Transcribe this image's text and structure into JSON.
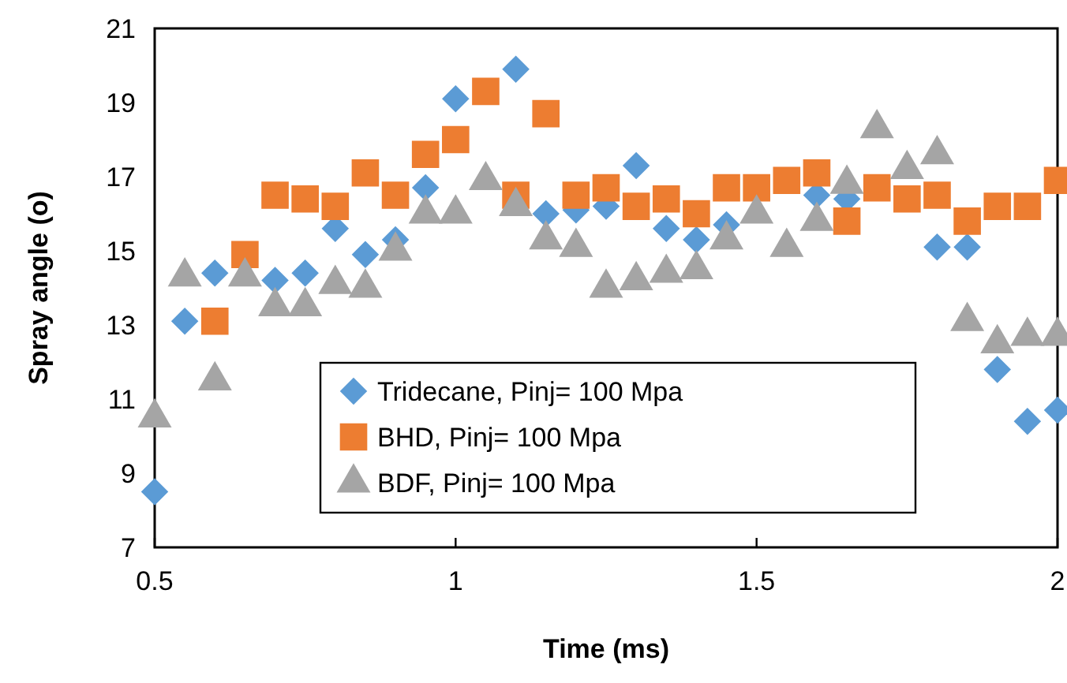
{
  "chart_data": {
    "type": "scatter",
    "xlabel": "Time (ms)",
    "ylabel": "Spray angle (o)",
    "x": [
      0.5,
      0.55,
      0.6,
      0.65,
      0.7,
      0.75,
      0.8,
      0.85,
      0.9,
      0.95,
      1.0,
      1.05,
      1.1,
      1.15,
      1.2,
      1.25,
      1.3,
      1.35,
      1.4,
      1.45,
      1.5,
      1.55,
      1.6,
      1.65,
      1.7,
      1.75,
      1.8,
      1.85,
      1.9,
      1.95,
      2.0
    ],
    "series": [
      {
        "name": "Tridecane, Pinj= 100 Mpa",
        "color": "#5b9bd5",
        "marker": "diamond",
        "values": [
          8.5,
          13.1,
          14.4,
          null,
          14.2,
          14.4,
          15.6,
          14.9,
          15.3,
          16.7,
          19.1,
          null,
          19.9,
          16.0,
          16.1,
          16.2,
          17.3,
          15.6,
          15.3,
          15.7,
          null,
          null,
          16.5,
          16.4,
          null,
          null,
          15.1,
          15.1,
          11.8,
          10.4,
          10.7
        ]
      },
      {
        "name": "BHD, Pinj= 100 Mpa",
        "color": "#ed7d31",
        "marker": "square",
        "values": [
          null,
          null,
          13.1,
          14.9,
          16.5,
          16.4,
          16.2,
          17.1,
          16.5,
          17.6,
          18.0,
          19.3,
          16.5,
          18.7,
          16.5,
          16.7,
          16.2,
          16.4,
          16.0,
          16.7,
          16.7,
          16.9,
          17.1,
          15.8,
          16.7,
          16.4,
          16.5,
          15.8,
          16.2,
          16.2,
          16.9
        ]
      },
      {
        "name": "BDF, Pinj= 100 Mpa",
        "color": "#a5a5a5",
        "marker": "triangle",
        "values": [
          10.5,
          14.3,
          11.5,
          14.3,
          13.5,
          13.5,
          14.1,
          14.0,
          15.0,
          16.0,
          16.0,
          16.9,
          16.2,
          15.3,
          15.1,
          14.0,
          14.2,
          14.4,
          14.5,
          15.3,
          16.0,
          15.1,
          15.8,
          16.8,
          18.3,
          17.2,
          17.6,
          13.1,
          12.5,
          12.7,
          12.7
        ]
      }
    ],
    "xlim": [
      0.5,
      2
    ],
    "xticks": [
      0.5,
      1,
      1.5,
      2
    ],
    "ylim": [
      7,
      21
    ],
    "yticks": [
      7,
      9,
      11,
      13,
      15,
      17,
      19,
      21
    ],
    "grid": false,
    "legend": "bottom"
  }
}
